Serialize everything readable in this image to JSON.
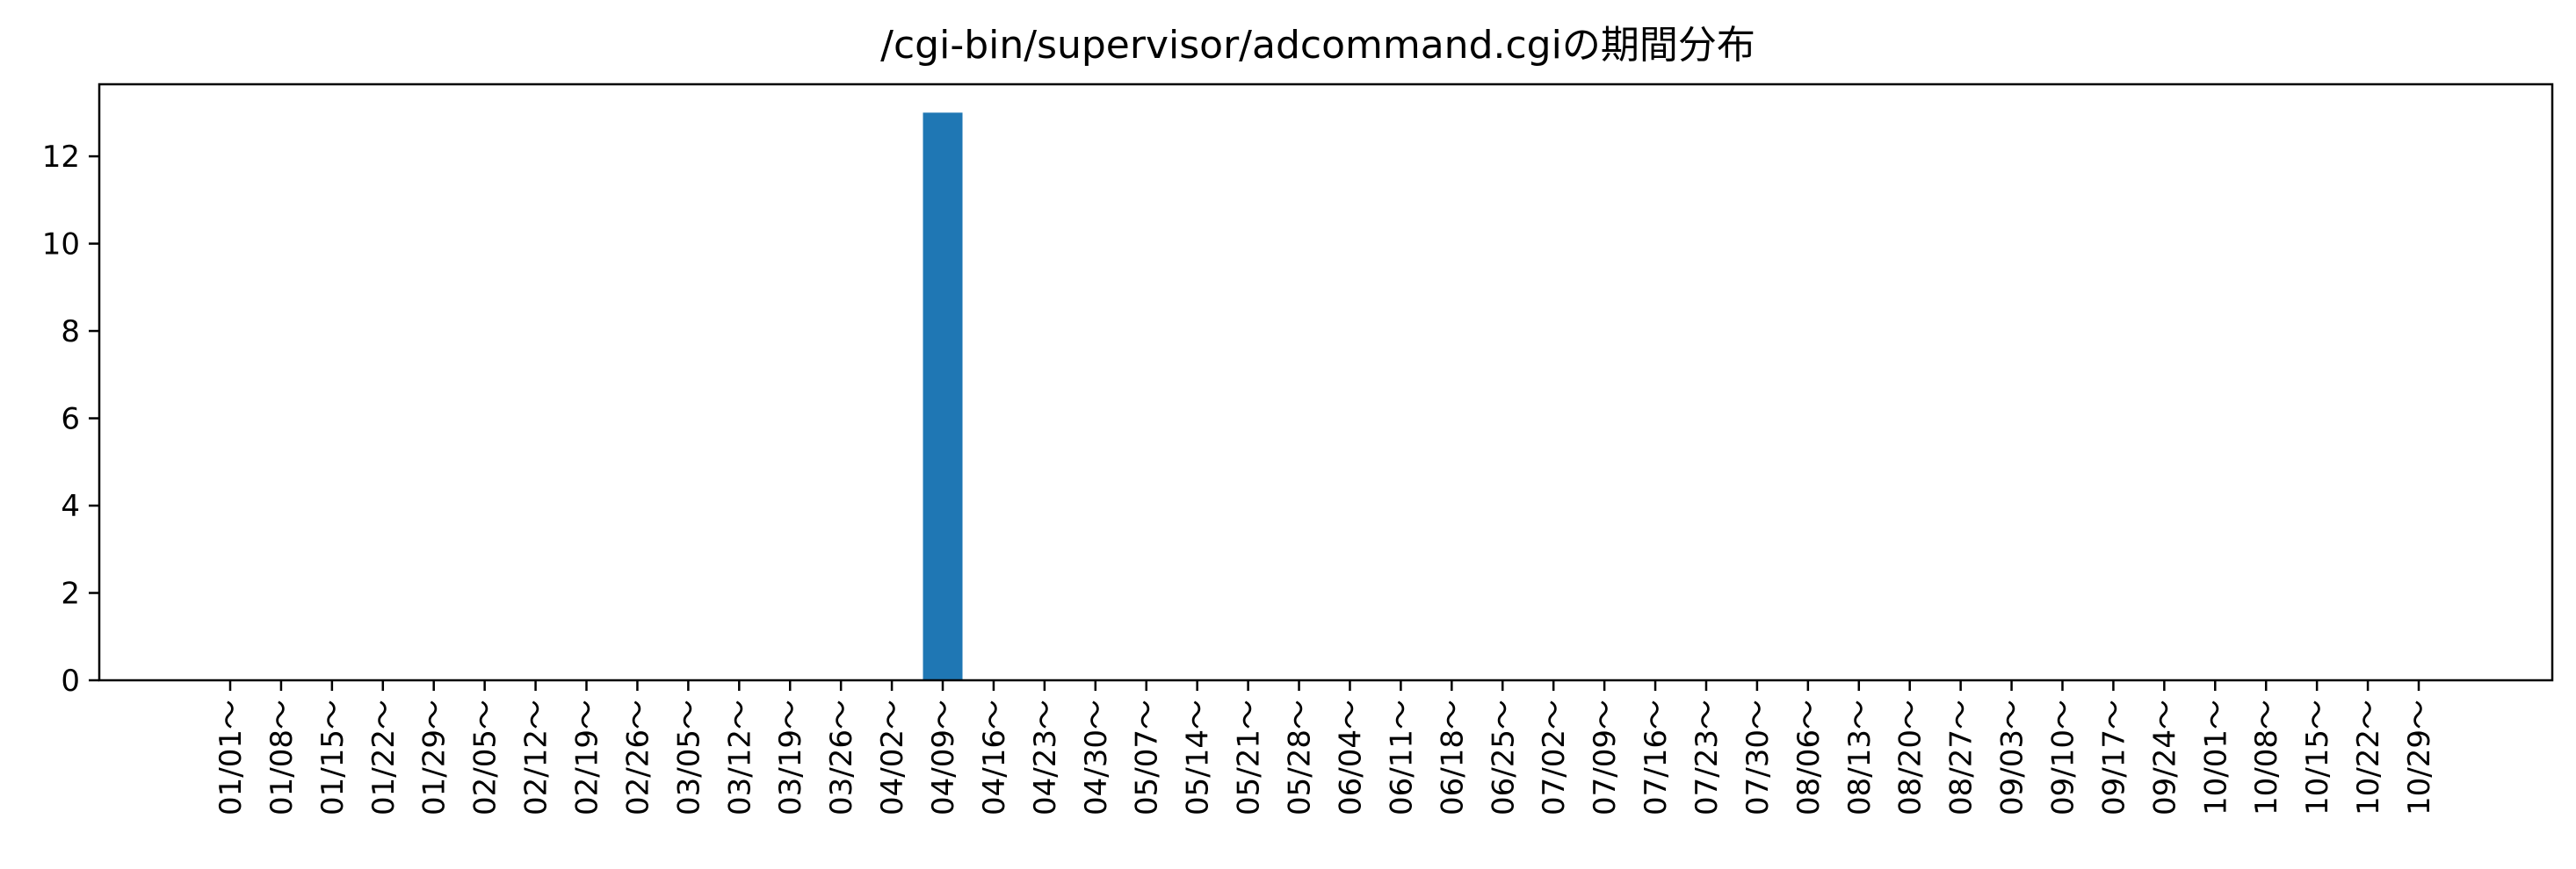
{
  "chart_data": {
    "type": "bar",
    "title": "/cgi-bin/supervisor/adcommand.cgiの期間分布",
    "xlabel": "",
    "ylabel": "",
    "categories": [
      "01/01～",
      "01/08～",
      "01/15～",
      "01/22～",
      "01/29～",
      "02/05～",
      "02/12～",
      "02/19～",
      "02/26～",
      "03/05～",
      "03/12～",
      "03/19～",
      "03/26～",
      "04/02～",
      "04/09～",
      "04/16～",
      "04/23～",
      "04/30～",
      "05/07～",
      "05/14～",
      "05/21～",
      "05/28～",
      "06/04～",
      "06/11～",
      "06/18～",
      "06/25～",
      "07/02～",
      "07/09～",
      "07/16～",
      "07/23～",
      "07/30～",
      "08/06～",
      "08/13～",
      "08/20～",
      "08/27～",
      "09/03～",
      "09/10～",
      "09/17～",
      "09/24～",
      "10/01～",
      "10/08～",
      "10/15～",
      "10/22～",
      "10/29～"
    ],
    "values": [
      0,
      0,
      0,
      0,
      0,
      0,
      0,
      0,
      0,
      0,
      0,
      0,
      0,
      0,
      13,
      0,
      0,
      0,
      0,
      0,
      0,
      0,
      0,
      0,
      0,
      0,
      0,
      0,
      0,
      0,
      0,
      0,
      0,
      0,
      0,
      0,
      0,
      0,
      0,
      0,
      0,
      0,
      0,
      0
    ],
    "ylim": [
      0,
      13.65
    ],
    "yticks": [
      "0",
      "2",
      "4",
      "6",
      "8",
      "10",
      "12"
    ],
    "grid": false,
    "bar_color": "#1f77b4"
  }
}
